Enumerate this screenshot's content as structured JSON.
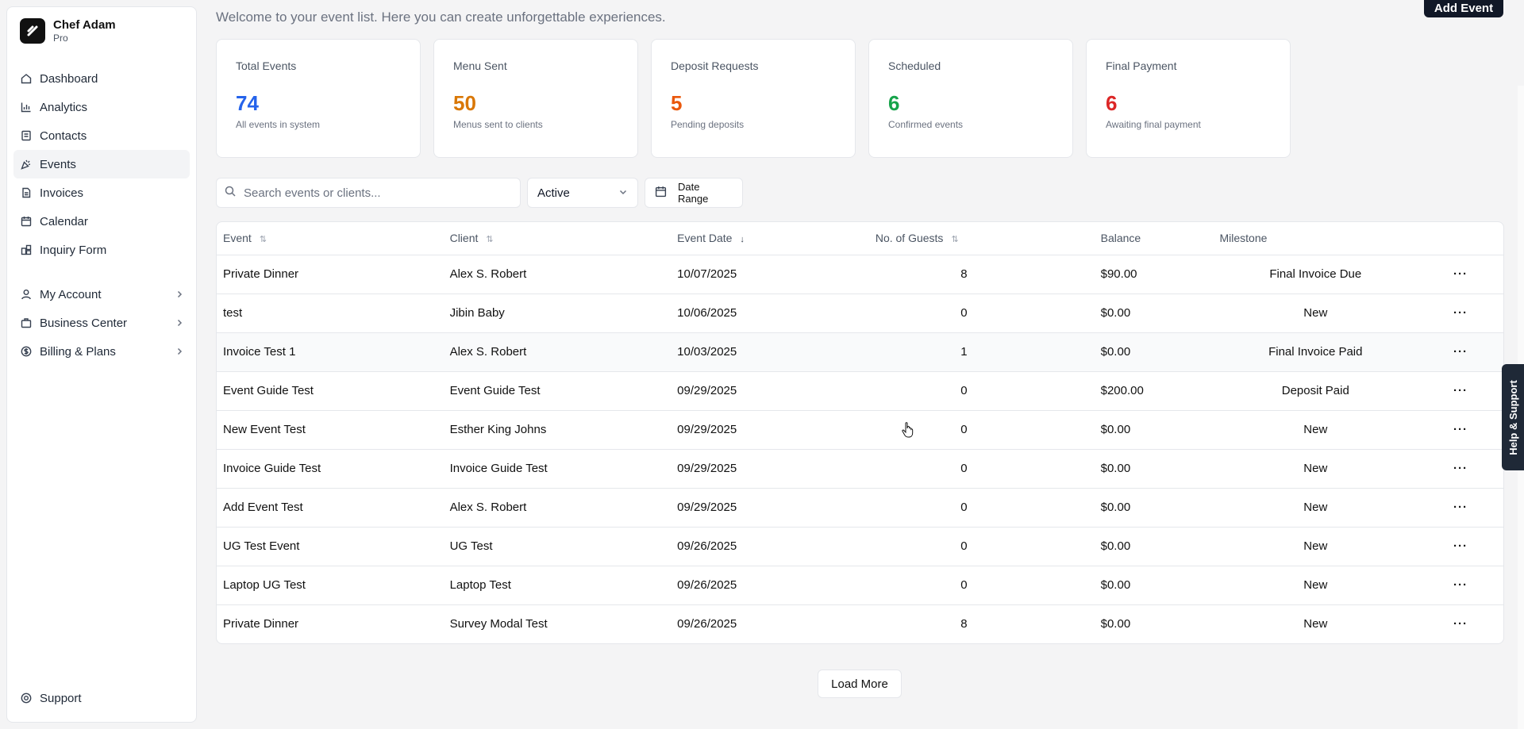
{
  "sidebar": {
    "user_name": "Chef Adam",
    "plan": "Pro",
    "items": [
      {
        "label": "Dashboard",
        "icon": "home-icon"
      },
      {
        "label": "Analytics",
        "icon": "bar-chart-icon"
      },
      {
        "label": "Contacts",
        "icon": "contacts-icon"
      },
      {
        "label": "Events",
        "icon": "party-icon"
      },
      {
        "label": "Invoices",
        "icon": "document-icon"
      },
      {
        "label": "Calendar",
        "icon": "calendar-icon"
      },
      {
        "label": "Inquiry Form",
        "icon": "form-icon"
      }
    ],
    "groups": [
      {
        "label": "My Account",
        "icon": "user-icon"
      },
      {
        "label": "Business Center",
        "icon": "briefcase-icon"
      },
      {
        "label": "Billing & Plans",
        "icon": "dollar-icon"
      }
    ],
    "support": "Support"
  },
  "header": {
    "subtitle": "Welcome to your event list. Here you can create unforgettable experiences.",
    "add_button": "Add Event"
  },
  "cards": [
    {
      "label": "Total Events",
      "value": "74",
      "desc": "All events in system",
      "color": "#2563eb"
    },
    {
      "label": "Menu Sent",
      "value": "50",
      "desc": "Menus sent to clients",
      "color": "#d97706"
    },
    {
      "label": "Deposit Requests",
      "value": "5",
      "desc": "Pending deposits",
      "color": "#ea580c"
    },
    {
      "label": "Scheduled",
      "value": "6",
      "desc": "Confirmed events",
      "color": "#16a34a"
    },
    {
      "label": "Final Payment",
      "value": "6",
      "desc": "Awaiting final payment",
      "color": "#dc2626"
    }
  ],
  "filters": {
    "search_placeholder": "Search events or clients...",
    "status": "Active",
    "date_range": "Date Range"
  },
  "table": {
    "headers": {
      "event": "Event",
      "client": "Client",
      "date": "Event Date",
      "guests": "No. of Guests",
      "balance": "Balance",
      "milestone": "Milestone"
    },
    "rows": [
      {
        "event": "Private Dinner",
        "client": "Alex S. Robert",
        "date": "10/07/2025",
        "guests": "8",
        "balance": "$90.00",
        "milestone": "Final Invoice Due"
      },
      {
        "event": "test",
        "client": "Jibin Baby",
        "date": "10/06/2025",
        "guests": "0",
        "balance": "$0.00",
        "milestone": "New"
      },
      {
        "event": "Invoice Test 1",
        "client": "Alex S. Robert",
        "date": "10/03/2025",
        "guests": "1",
        "balance": "$0.00",
        "milestone": "Final Invoice Paid"
      },
      {
        "event": "Event Guide Test",
        "client": "Event Guide Test",
        "date": "09/29/2025",
        "guests": "0",
        "balance": "$200.00",
        "milestone": "Deposit Paid"
      },
      {
        "event": "New Event Test",
        "client": "Esther King Johns",
        "date": "09/29/2025",
        "guests": "0",
        "balance": "$0.00",
        "milestone": "New"
      },
      {
        "event": "Invoice Guide Test",
        "client": "Invoice Guide Test",
        "date": "09/29/2025",
        "guests": "0",
        "balance": "$0.00",
        "milestone": "New"
      },
      {
        "event": "Add Event Test",
        "client": "Alex S. Robert",
        "date": "09/29/2025",
        "guests": "0",
        "balance": "$0.00",
        "milestone": "New"
      },
      {
        "event": "UG Test Event",
        "client": "UG Test",
        "date": "09/26/2025",
        "guests": "0",
        "balance": "$0.00",
        "milestone": "New"
      },
      {
        "event": "Laptop UG Test",
        "client": "Laptop Test",
        "date": "09/26/2025",
        "guests": "0",
        "balance": "$0.00",
        "milestone": "New"
      },
      {
        "event": "Private Dinner",
        "client": "Survey Modal Test",
        "date": "09/26/2025",
        "guests": "8",
        "balance": "$0.00",
        "milestone": "New"
      }
    ]
  },
  "load_more": "Load More",
  "help_tab": "Help & Support"
}
